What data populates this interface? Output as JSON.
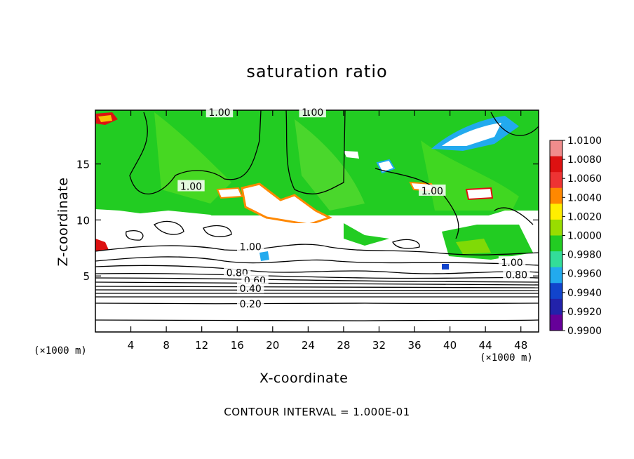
{
  "chart_data": {
    "type": "heatmap",
    "title": "saturation ratio",
    "xlabel": "X-coordinate",
    "ylabel": "Z-coordinate",
    "x_unit": "(×1000 m)",
    "x_ticks": [
      4,
      8,
      12,
      16,
      20,
      24,
      28,
      32,
      36,
      40,
      44,
      48
    ],
    "y_ticks": [
      5,
      10,
      15
    ],
    "xlim": [
      0,
      50
    ],
    "ylim": [
      0,
      19.8
    ],
    "colorbar": {
      "ticks": [
        "1.0100",
        "1.0080",
        "1.0060",
        "1.0040",
        "1.0020",
        "1.0000",
        "0.9980",
        "0.9960",
        "0.9940",
        "0.9920",
        "0.9900"
      ],
      "range": [
        0.99,
        1.01
      ],
      "colors": [
        "#f08c8c",
        "#dd1111",
        "#ee3333",
        "#ff8800",
        "#ffee00",
        "#99dd00",
        "#22cc22",
        "#33dd99",
        "#22aaee",
        "#1144cc",
        "#2222aa",
        "#660099"
      ]
    },
    "contour_labels": [
      {
        "text": "1.00",
        "x": 14.0,
        "z": 19.6
      },
      {
        "text": "1.00",
        "x": 24.5,
        "z": 19.6
      },
      {
        "text": "1.00",
        "x": 10.8,
        "z": 13.0
      },
      {
        "text": "1.00",
        "x": 38.0,
        "z": 12.6
      },
      {
        "text": "1.00",
        "x": 17.5,
        "z": 7.6
      },
      {
        "text": "0.80",
        "x": 16.0,
        "z": 5.3
      },
      {
        "text": "0.60",
        "x": 18.0,
        "z": 4.6
      },
      {
        "text": "0.40",
        "x": 17.5,
        "z": 3.9
      },
      {
        "text": "0.20",
        "x": 17.5,
        "z": 2.5
      },
      {
        "text": "1.00",
        "x": 47.0,
        "z": 6.2
      },
      {
        "text": "0.80",
        "x": 47.5,
        "z": 5.1
      }
    ],
    "grid": false,
    "legend": "colorbar-right"
  },
  "contour_note": "CONTOUR INTERVAL = 1.000E-01"
}
